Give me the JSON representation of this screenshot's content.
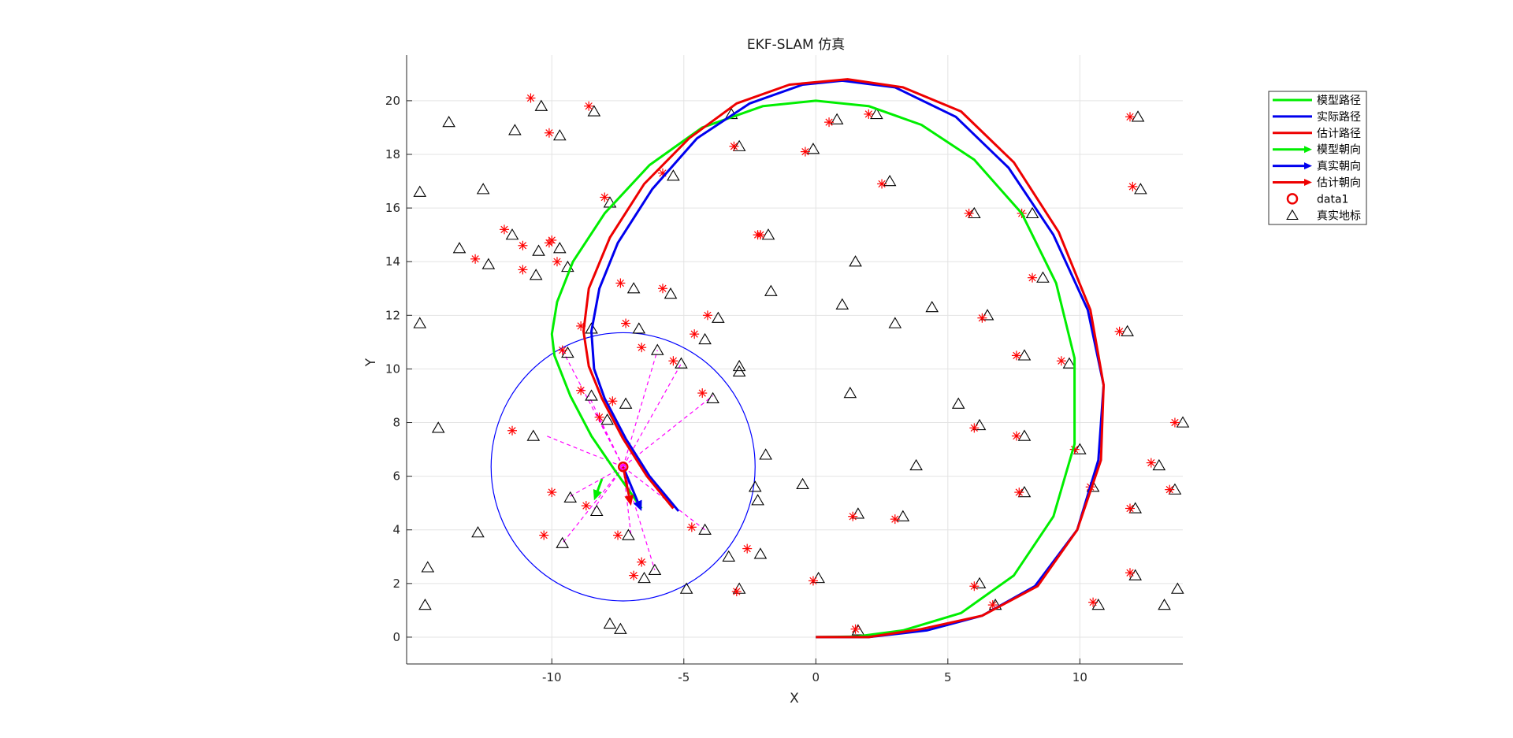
{
  "chart_data": {
    "type": "scatter",
    "title": "EKF-SLAM 仿真",
    "xlabel": "X",
    "ylabel": "Y",
    "xlim": [
      -15.5,
      13.9
    ],
    "ylim": [
      -1.0,
      21.7
    ],
    "xticks": [
      -10,
      -5,
      0,
      5,
      10
    ],
    "yticks": [
      0,
      2,
      4,
      6,
      8,
      10,
      12,
      14,
      16,
      18,
      20
    ],
    "grid": true,
    "legend_position": "outside-top-right",
    "series": [
      {
        "name": "模型路径",
        "kind": "line",
        "color": "#00ee00",
        "width": 3,
        "points": [
          [
            -6.6,
            4.8
          ],
          [
            -7.6,
            6.2
          ],
          [
            -8.5,
            7.5
          ],
          [
            -9.3,
            9.0
          ],
          [
            -9.9,
            10.5
          ],
          [
            -10.0,
            11.3
          ],
          [
            -9.8,
            12.5
          ],
          [
            -9.2,
            14.0
          ],
          [
            -8.0,
            15.8
          ],
          [
            -6.3,
            17.6
          ],
          [
            -4.3,
            19.0
          ],
          [
            -2.0,
            19.8
          ],
          [
            0.0,
            20.0
          ],
          [
            2.0,
            19.8
          ],
          [
            4.0,
            19.1
          ],
          [
            6.0,
            17.8
          ],
          [
            7.8,
            15.8
          ],
          [
            9.1,
            13.2
          ],
          [
            9.8,
            10.4
          ],
          [
            9.8,
            7.2
          ],
          [
            9.0,
            4.5
          ],
          [
            7.5,
            2.3
          ],
          [
            5.5,
            0.9
          ],
          [
            3.3,
            0.25
          ],
          [
            1.5,
            0.02
          ],
          [
            0.0,
            0.0
          ]
        ]
      },
      {
        "name": "实际路径",
        "kind": "line",
        "color": "#0000ee",
        "width": 3,
        "points": [
          [
            -5.2,
            4.7
          ],
          [
            -6.3,
            6.0
          ],
          [
            -7.2,
            7.4
          ],
          [
            -8.0,
            8.9
          ],
          [
            -8.4,
            10.0
          ],
          [
            -8.5,
            11.4
          ],
          [
            -8.2,
            13.0
          ],
          [
            -7.5,
            14.7
          ],
          [
            -6.2,
            16.7
          ],
          [
            -4.5,
            18.6
          ],
          [
            -2.5,
            19.9
          ],
          [
            -0.5,
            20.6
          ],
          [
            1.0,
            20.75
          ],
          [
            3.0,
            20.5
          ],
          [
            5.3,
            19.4
          ],
          [
            7.3,
            17.5
          ],
          [
            9.0,
            15.0
          ],
          [
            10.3,
            12.2
          ],
          [
            10.9,
            9.4
          ],
          [
            10.7,
            6.6
          ],
          [
            9.9,
            4.0
          ],
          [
            8.3,
            1.9
          ],
          [
            6.3,
            0.8
          ],
          [
            4.2,
            0.25
          ],
          [
            2.0,
            0.0
          ],
          [
            0.0,
            0.0
          ]
        ]
      },
      {
        "name": "估计路径",
        "kind": "line",
        "color": "#ee0000",
        "width": 3,
        "points": [
          [
            -5.4,
            4.8
          ],
          [
            -6.4,
            6.0
          ],
          [
            -7.3,
            7.4
          ],
          [
            -8.1,
            8.9
          ],
          [
            -8.6,
            10.1
          ],
          [
            -8.8,
            11.4
          ],
          [
            -8.6,
            13.0
          ],
          [
            -7.8,
            14.9
          ],
          [
            -6.5,
            16.9
          ],
          [
            -4.8,
            18.6
          ],
          [
            -3.0,
            19.9
          ],
          [
            -1.0,
            20.6
          ],
          [
            1.2,
            20.8
          ],
          [
            3.3,
            20.5
          ],
          [
            5.5,
            19.6
          ],
          [
            7.5,
            17.7
          ],
          [
            9.2,
            15.1
          ],
          [
            10.4,
            12.2
          ],
          [
            10.9,
            9.4
          ],
          [
            10.8,
            6.6
          ],
          [
            9.9,
            4.0
          ],
          [
            8.4,
            1.9
          ],
          [
            6.3,
            0.8
          ],
          [
            4.0,
            0.3
          ],
          [
            2.0,
            0.0
          ],
          [
            0.0,
            0.0
          ]
        ]
      }
    ],
    "heading_arrows": [
      {
        "name": "模型朝向",
        "color": "#00ee00",
        "from": [
          -8.1,
          5.9
        ],
        "to": [
          -8.4,
          5.1
        ]
      },
      {
        "name": "真实朝向",
        "color": "#0000ee",
        "from": [
          -7.3,
          6.35
        ],
        "to": [
          -6.6,
          4.7
        ]
      },
      {
        "name": "估计朝向",
        "color": "#ee0000",
        "from": [
          -7.3,
          6.35
        ],
        "to": [
          -7.0,
          4.9
        ]
      }
    ],
    "robot_position": {
      "name": "data1",
      "x": -7.3,
      "y": 6.35
    },
    "sensor_range": {
      "center": [
        -7.3,
        6.35
      ],
      "radius": 5.0,
      "color": "#0000ff"
    },
    "observations": [
      [
        -9.6,
        10.7
      ],
      [
        -8.6,
        9.0
      ],
      [
        -6.0,
        10.7
      ],
      [
        -5.1,
        10.2
      ],
      [
        -3.9,
        9.0
      ],
      [
        -10.2,
        7.5
      ],
      [
        -8.2,
        8.1
      ],
      [
        -9.4,
        5.2
      ],
      [
        -8.4,
        4.8
      ],
      [
        -9.6,
        3.5
      ],
      [
        -7.0,
        3.8
      ],
      [
        -6.1,
        2.5
      ],
      [
        -4.2,
        4.0
      ]
    ],
    "true_landmarks": [
      [
        -15.0,
        16.6
      ],
      [
        -13.9,
        19.2
      ],
      [
        -11.4,
        18.9
      ],
      [
        -10.4,
        19.8
      ],
      [
        -8.4,
        19.6
      ],
      [
        -9.7,
        18.7
      ],
      [
        -12.6,
        16.7
      ],
      [
        -7.8,
        16.2
      ],
      [
        -5.4,
        17.2
      ],
      [
        -13.5,
        14.5
      ],
      [
        -11.5,
        15.0
      ],
      [
        -10.5,
        14.4
      ],
      [
        -9.7,
        14.5
      ],
      [
        -12.4,
        13.9
      ],
      [
        -10.6,
        13.5
      ],
      [
        -9.4,
        13.8
      ],
      [
        -6.9,
        13.0
      ],
      [
        -5.5,
        12.8
      ],
      [
        -15.0,
        11.7
      ],
      [
        -8.5,
        11.5
      ],
      [
        -6.7,
        11.5
      ],
      [
        -3.7,
        11.9
      ],
      [
        -4.2,
        11.1
      ],
      [
        -9.4,
        10.6
      ],
      [
        -6.0,
        10.7
      ],
      [
        -5.1,
        10.2
      ],
      [
        -2.9,
        10.1
      ],
      [
        -2.9,
        9.9
      ],
      [
        -8.5,
        9.0
      ],
      [
        -3.9,
        8.9
      ],
      [
        -14.3,
        7.8
      ],
      [
        -10.7,
        7.5
      ],
      [
        -7.9,
        8.1
      ],
      [
        -7.2,
        8.7
      ],
      [
        -1.9,
        6.8
      ],
      [
        -9.3,
        5.2
      ],
      [
        -8.3,
        4.7
      ],
      [
        -2.3,
        5.6
      ],
      [
        -2.2,
        5.1
      ],
      [
        -12.8,
        3.9
      ],
      [
        -9.6,
        3.5
      ],
      [
        -7.1,
        3.8
      ],
      [
        -4.2,
        4.0
      ],
      [
        -3.3,
        3.0
      ],
      [
        -2.1,
        3.1
      ],
      [
        -6.1,
        2.5
      ],
      [
        -6.5,
        2.2
      ],
      [
        -14.7,
        2.6
      ],
      [
        -14.8,
        1.2
      ],
      [
        -7.8,
        0.5
      ],
      [
        -7.4,
        0.3
      ],
      [
        -4.9,
        1.8
      ],
      [
        -2.9,
        1.8
      ],
      [
        -3.2,
        19.5
      ],
      [
        -2.9,
        18.3
      ],
      [
        0.8,
        19.3
      ],
      [
        2.3,
        19.5
      ],
      [
        -0.1,
        18.2
      ],
      [
        2.8,
        17.0
      ],
      [
        -1.8,
        15.0
      ],
      [
        1.5,
        14.0
      ],
      [
        -1.7,
        12.9
      ],
      [
        1.0,
        12.4
      ],
      [
        3.0,
        11.7
      ],
      [
        4.4,
        12.3
      ],
      [
        1.3,
        9.1
      ],
      [
        5.4,
        8.7
      ],
      [
        3.8,
        6.4
      ],
      [
        -0.5,
        5.7
      ],
      [
        1.6,
        4.6
      ],
      [
        3.3,
        4.5
      ],
      [
        0.1,
        2.2
      ],
      [
        1.6,
        0.25
      ],
      [
        6.0,
        15.8
      ],
      [
        8.2,
        15.8
      ],
      [
        8.6,
        13.4
      ],
      [
        6.5,
        12.0
      ],
      [
        7.9,
        10.5
      ],
      [
        9.6,
        10.2
      ],
      [
        6.2,
        7.9
      ],
      [
        7.9,
        7.5
      ],
      [
        10.0,
        7.0
      ],
      [
        7.9,
        5.4
      ],
      [
        10.5,
        5.6
      ],
      [
        6.2,
        2.0
      ],
      [
        6.8,
        1.2
      ],
      [
        10.7,
        1.2
      ],
      [
        12.2,
        19.4
      ],
      [
        12.3,
        16.7
      ],
      [
        11.8,
        11.4
      ],
      [
        13.9,
        8.0
      ],
      [
        13.0,
        6.4
      ],
      [
        13.6,
        5.5
      ],
      [
        12.1,
        4.8
      ],
      [
        12.1,
        2.3
      ],
      [
        13.7,
        1.8
      ],
      [
        13.2,
        1.2
      ]
    ],
    "estimated_landmarks": [
      [
        -10.8,
        20.1
      ],
      [
        -10.1,
        18.8
      ],
      [
        -8.6,
        19.8
      ],
      [
        -8.0,
        16.4
      ],
      [
        -5.8,
        17.3
      ],
      [
        -11.8,
        15.2
      ],
      [
        -11.1,
        14.6
      ],
      [
        -10.1,
        14.7
      ],
      [
        -10.0,
        14.8
      ],
      [
        -12.9,
        14.1
      ],
      [
        -11.1,
        13.7
      ],
      [
        -9.8,
        14.0
      ],
      [
        -7.4,
        13.2
      ],
      [
        -5.8,
        13.0
      ],
      [
        -8.9,
        11.6
      ],
      [
        -7.2,
        11.7
      ],
      [
        -4.1,
        12.0
      ],
      [
        -4.6,
        11.3
      ],
      [
        -9.6,
        10.7
      ],
      [
        -6.6,
        10.8
      ],
      [
        -5.4,
        10.3
      ],
      [
        -8.9,
        9.2
      ],
      [
        -7.7,
        8.8
      ],
      [
        -4.3,
        9.1
      ],
      [
        -11.5,
        7.7
      ],
      [
        -8.2,
        8.2
      ],
      [
        -10.0,
        5.4
      ],
      [
        -8.7,
        4.9
      ],
      [
        -10.3,
        3.8
      ],
      [
        -7.5,
        3.8
      ],
      [
        -4.7,
        4.1
      ],
      [
        -2.6,
        3.3
      ],
      [
        -6.6,
        2.8
      ],
      [
        -6.9,
        2.3
      ],
      [
        -3.0,
        1.7
      ],
      [
        -3.1,
        18.3
      ],
      [
        -2.2,
        15.0
      ],
      [
        -2.1,
        15.0
      ],
      [
        -0.4,
        18.1
      ],
      [
        0.5,
        19.2
      ],
      [
        2.0,
        19.5
      ],
      [
        2.5,
        16.9
      ],
      [
        -0.1,
        2.1
      ],
      [
        1.4,
        4.5
      ],
      [
        3.0,
        4.4
      ],
      [
        1.5,
        0.3
      ],
      [
        5.8,
        15.8
      ],
      [
        7.8,
        15.8
      ],
      [
        8.2,
        13.4
      ],
      [
        6.3,
        11.9
      ],
      [
        7.6,
        10.5
      ],
      [
        9.3,
        10.3
      ],
      [
        6.0,
        7.8
      ],
      [
        7.6,
        7.5
      ],
      [
        9.8,
        7.0
      ],
      [
        7.7,
        5.4
      ],
      [
        10.4,
        5.6
      ],
      [
        6.0,
        1.9
      ],
      [
        6.7,
        1.2
      ],
      [
        10.5,
        1.3
      ],
      [
        11.9,
        19.4
      ],
      [
        12.0,
        16.8
      ],
      [
        11.5,
        11.4
      ],
      [
        13.6,
        8.0
      ],
      [
        12.7,
        6.5
      ],
      [
        13.4,
        5.5
      ],
      [
        11.9,
        4.8
      ],
      [
        11.9,
        2.4
      ]
    ]
  },
  "legend": {
    "items": [
      {
        "label": "模型路径",
        "kind": "line",
        "color": "#00ee00"
      },
      {
        "label": "实际路径",
        "kind": "line",
        "color": "#0000ee"
      },
      {
        "label": "估计路径",
        "kind": "line",
        "color": "#ee0000"
      },
      {
        "label": "模型朝向",
        "kind": "arrow",
        "color": "#00ee00"
      },
      {
        "label": "真实朝向",
        "kind": "arrow",
        "color": "#0000ee"
      },
      {
        "label": "估计朝向",
        "kind": "arrow",
        "color": "#ee0000"
      },
      {
        "label": "data1",
        "kind": "circle",
        "color": "#ee0000"
      },
      {
        "label": "真实地标",
        "kind": "triangle",
        "color": "#000000"
      }
    ]
  }
}
